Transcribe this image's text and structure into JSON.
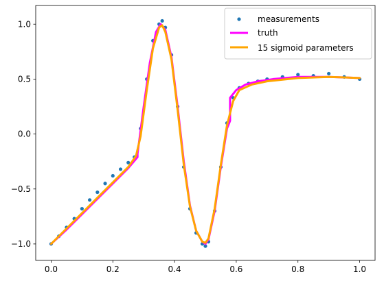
{
  "chart_data": {
    "type": "line",
    "title": "",
    "xlabel": "",
    "ylabel": "",
    "xlim": [
      -0.05,
      1.05
    ],
    "ylim": [
      -1.15,
      1.17
    ],
    "x_ticks": [
      0.0,
      0.2,
      0.4,
      0.6,
      0.8,
      1.0
    ],
    "x_tick_labels": [
      "0.0",
      "0.2",
      "0.4",
      "0.6",
      "0.8",
      "1.0"
    ],
    "y_ticks": [
      -1.0,
      -0.5,
      0.0,
      0.5,
      1.0
    ],
    "y_tick_labels": [
      "−1.0",
      "−0.5",
      "0.0",
      "0.5",
      "1.0"
    ],
    "grid": false,
    "legend_position": "top-right",
    "series": [
      {
        "name": "measurements",
        "kind": "scatter",
        "color": "#1f77b4",
        "x": [
          0.0,
          0.025,
          0.05,
          0.075,
          0.1,
          0.125,
          0.15,
          0.175,
          0.2,
          0.225,
          0.25,
          0.27,
          0.29,
          0.31,
          0.33,
          0.35,
          0.36,
          0.37,
          0.39,
          0.41,
          0.43,
          0.45,
          0.47,
          0.49,
          0.5,
          0.51,
          0.53,
          0.55,
          0.57,
          0.59,
          0.61,
          0.64,
          0.67,
          0.7,
          0.75,
          0.8,
          0.85,
          0.9,
          0.95,
          1.0
        ],
        "y": [
          -1.0,
          -0.93,
          -0.85,
          -0.77,
          -0.68,
          -0.6,
          -0.53,
          -0.45,
          -0.38,
          -0.32,
          -0.26,
          -0.21,
          0.05,
          0.5,
          0.85,
          1.0,
          1.03,
          0.97,
          0.72,
          0.25,
          -0.3,
          -0.68,
          -0.9,
          -1.0,
          -1.02,
          -0.98,
          -0.7,
          -0.3,
          0.1,
          0.33,
          0.42,
          0.46,
          0.48,
          0.5,
          0.52,
          0.54,
          0.53,
          0.55,
          0.52,
          0.5
        ]
      },
      {
        "name": "truth",
        "kind": "line",
        "color": "#ff00ff",
        "x": [
          0.0,
          0.05,
          0.1,
          0.15,
          0.2,
          0.25,
          0.28,
          0.28,
          0.3,
          0.32,
          0.34,
          0.355,
          0.37,
          0.39,
          0.41,
          0.43,
          0.45,
          0.47,
          0.49,
          0.5,
          0.51,
          0.53,
          0.55,
          0.57,
          0.58,
          0.58,
          0.6,
          0.63,
          0.67,
          0.72,
          0.8,
          0.9,
          1.0
        ],
        "y": [
          -1.0,
          -0.87,
          -0.73,
          -0.59,
          -0.45,
          -0.31,
          -0.21,
          -0.18,
          0.25,
          0.65,
          0.93,
          1.0,
          0.95,
          0.7,
          0.25,
          -0.25,
          -0.65,
          -0.88,
          -0.98,
          -1.0,
          -0.96,
          -0.7,
          -0.3,
          0.05,
          0.12,
          0.33,
          0.4,
          0.45,
          0.48,
          0.5,
          0.52,
          0.52,
          0.51
        ]
      },
      {
        "name": "15 sigmoid parameters",
        "kind": "line",
        "color": "#ffa500",
        "x": [
          0.0,
          0.05,
          0.1,
          0.15,
          0.2,
          0.25,
          0.275,
          0.29,
          0.31,
          0.33,
          0.35,
          0.36,
          0.37,
          0.39,
          0.41,
          0.43,
          0.45,
          0.47,
          0.49,
          0.5,
          0.51,
          0.53,
          0.55,
          0.57,
          0.59,
          0.61,
          0.65,
          0.7,
          0.8,
          0.9,
          1.0
        ],
        "y": [
          -1.0,
          -0.86,
          -0.72,
          -0.58,
          -0.44,
          -0.3,
          -0.2,
          -0.02,
          0.4,
          0.78,
          0.97,
          0.99,
          0.93,
          0.68,
          0.22,
          -0.28,
          -0.66,
          -0.88,
          -0.98,
          -0.99,
          -0.95,
          -0.68,
          -0.28,
          0.08,
          0.3,
          0.4,
          0.45,
          0.48,
          0.51,
          0.52,
          0.51
        ]
      }
    ]
  }
}
